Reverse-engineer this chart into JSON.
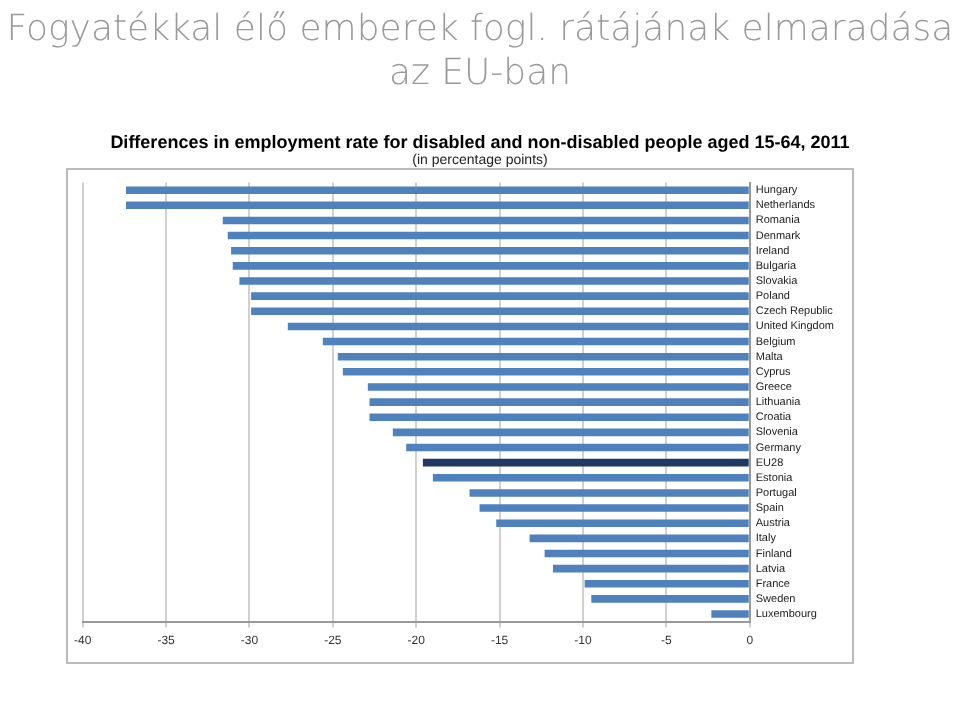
{
  "chart_data": {
    "type": "bar",
    "orientation": "horizontal",
    "title": "Fogyatékkal élő emberek fogl. rátájának elmaradása az EU-ban",
    "subtitle": "Differences in employment rate for disabled and non-disabled people aged 15-64, 2011",
    "annotations": [
      "(in percentage points)"
    ],
    "categories": [
      "Hungary",
      "Netherlands",
      "Romania",
      "Denmark",
      "Ireland",
      "Bulgaria",
      "Slovakia",
      "Poland",
      "Czech Republic",
      "United Kingdom",
      "Belgium",
      "Malta",
      "Cyprus",
      "Greece",
      "Lithuania",
      "Croatia",
      "Slovenia",
      "Germany",
      "EU28",
      "Estonia",
      "Portugal",
      "Spain",
      "Austria",
      "Italy",
      "Finland",
      "Latvia",
      "France",
      "Sweden",
      "Luxembourg"
    ],
    "values": [
      -37.4,
      -37.4,
      -31.6,
      -31.3,
      -31.1,
      -31.0,
      -30.6,
      -29.9,
      -29.9,
      -27.7,
      -25.6,
      -24.7,
      -24.4,
      -22.9,
      -22.8,
      -22.8,
      -21.4,
      -20.6,
      -19.6,
      -19.0,
      -16.8,
      -16.2,
      -15.2,
      -13.2,
      -12.3,
      -11.8,
      -9.9,
      -9.5,
      -2.3
    ],
    "colors": [
      "#4f81bd",
      "#4f81bd",
      "#4f81bd",
      "#4f81bd",
      "#4f81bd",
      "#4f81bd",
      "#4f81bd",
      "#4f81bd",
      "#4f81bd",
      "#4f81bd",
      "#4f81bd",
      "#4f81bd",
      "#4f81bd",
      "#4f81bd",
      "#4f81bd",
      "#4f81bd",
      "#4f81bd",
      "#4f81bd",
      "#1f3864",
      "#4f81bd",
      "#4f81bd",
      "#4f81bd",
      "#4f81bd",
      "#4f81bd",
      "#4f81bd",
      "#4f81bd",
      "#4f81bd",
      "#4f81bd",
      "#4f81bd"
    ],
    "xlim": [
      -40,
      0
    ],
    "xticks": [
      -40,
      -35,
      -30,
      -25,
      -20,
      -15,
      -10,
      -5,
      0
    ],
    "grid": "x",
    "legend": false
  }
}
